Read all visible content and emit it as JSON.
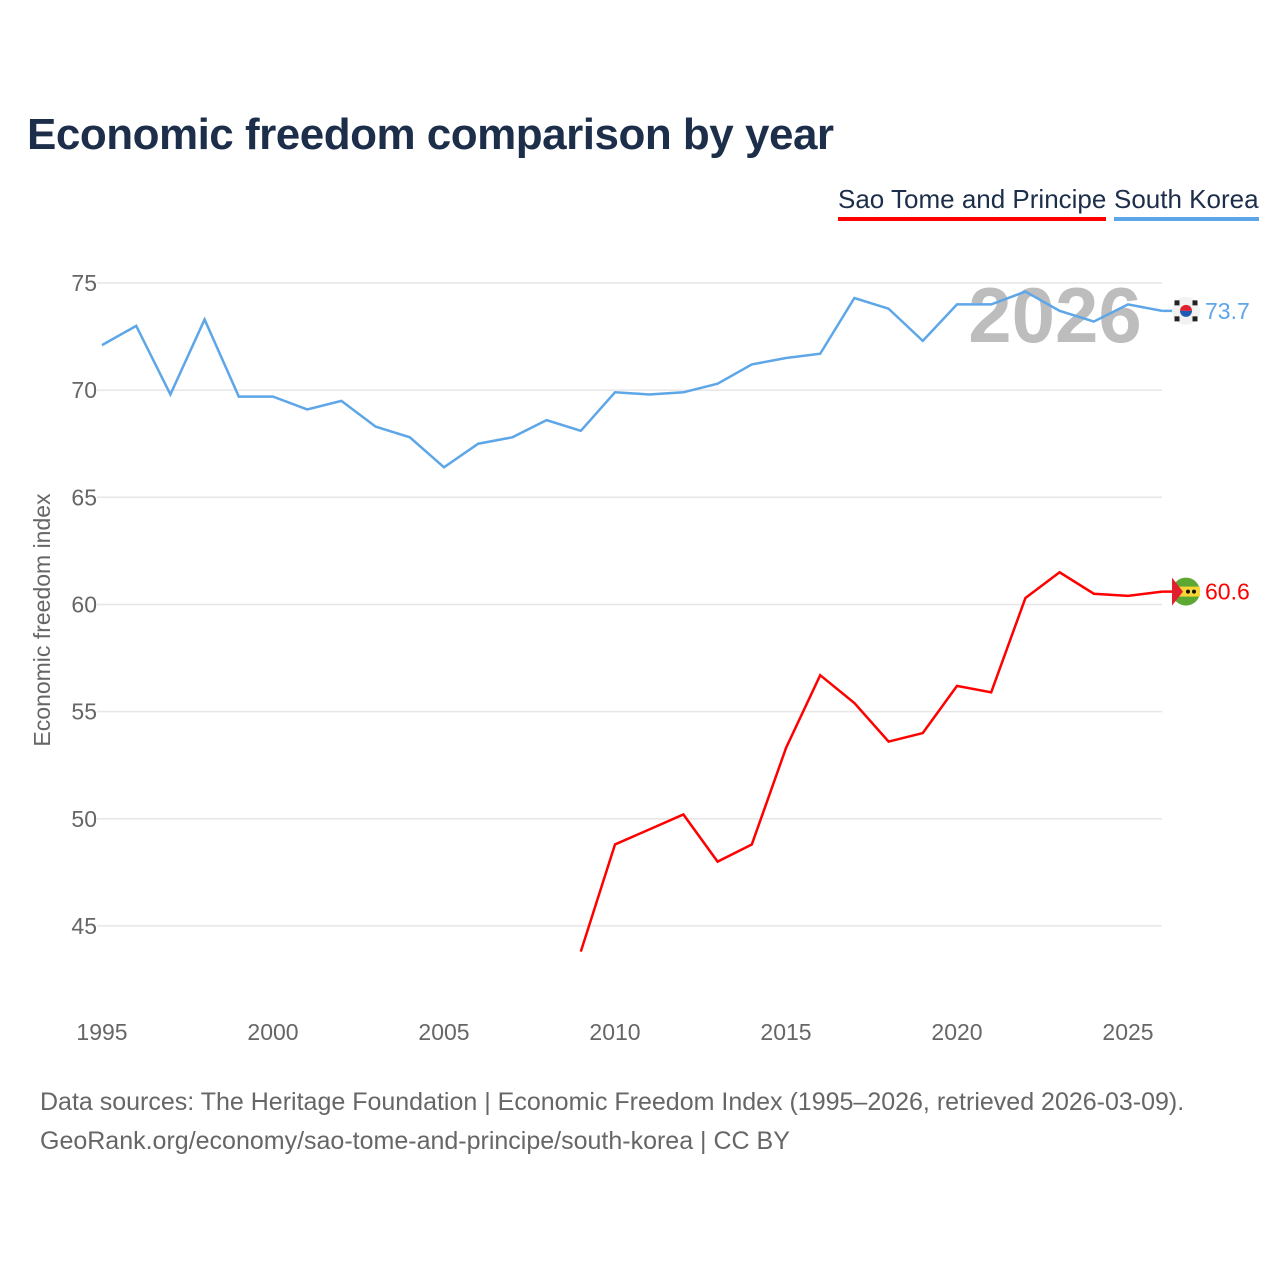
{
  "chart_data": {
    "type": "line",
    "title": "Economic freedom comparison by year",
    "xlabel": "",
    "ylabel": "Economic freedom index",
    "xlim": [
      1995,
      2026
    ],
    "ylim": [
      42,
      77
    ],
    "x_ticks": [
      "1995",
      "2000",
      "2005",
      "2010",
      "2015",
      "2020",
      "2025"
    ],
    "y_ticks": [
      "45",
      "50",
      "55",
      "60",
      "65",
      "70",
      "75"
    ],
    "grid": true,
    "legend_placement": "top-right",
    "year_watermark": "2026",
    "series": [
      {
        "name": "Sao Tome and Principe",
        "color": "#ff0000",
        "end_label": "60.6",
        "flag": "sao-tome-and-principe-flag",
        "x": [
          2009,
          2010,
          2011,
          2012,
          2013,
          2014,
          2015,
          2016,
          2017,
          2018,
          2019,
          2020,
          2021,
          2022,
          2023,
          2024,
          2025,
          2026
        ],
        "values": [
          43.8,
          48.8,
          49.5,
          50.2,
          48.0,
          48.8,
          53.3,
          56.7,
          55.4,
          53.6,
          54.0,
          56.2,
          55.9,
          60.3,
          61.5,
          60.5,
          60.4,
          60.6
        ]
      },
      {
        "name": "South Korea",
        "color": "#5da6e8",
        "end_label": "73.7",
        "flag": "south-korea-flag",
        "x": [
          1995,
          1996,
          1997,
          1998,
          1999,
          2000,
          2001,
          2002,
          2003,
          2004,
          2005,
          2006,
          2007,
          2008,
          2009,
          2010,
          2011,
          2012,
          2013,
          2014,
          2015,
          2016,
          2017,
          2018,
          2019,
          2020,
          2021,
          2022,
          2023,
          2024,
          2025,
          2026
        ],
        "values": [
          72.1,
          73.0,
          69.8,
          73.3,
          69.7,
          69.7,
          69.1,
          69.5,
          68.3,
          67.8,
          66.4,
          67.5,
          67.8,
          68.6,
          68.1,
          69.9,
          69.8,
          69.9,
          70.3,
          71.2,
          71.5,
          71.7,
          74.3,
          73.8,
          72.3,
          74.0,
          74.0,
          74.6,
          73.7,
          73.2,
          74.0,
          73.7
        ]
      }
    ]
  },
  "footer": {
    "source_line": "Data sources: The Heritage Foundation | Economic Freedom Index (1995–2026, retrieved 2026-03-09).",
    "url_line": "GeoRank.org/economy/sao-tome-and-principe/south-korea | CC BY"
  }
}
